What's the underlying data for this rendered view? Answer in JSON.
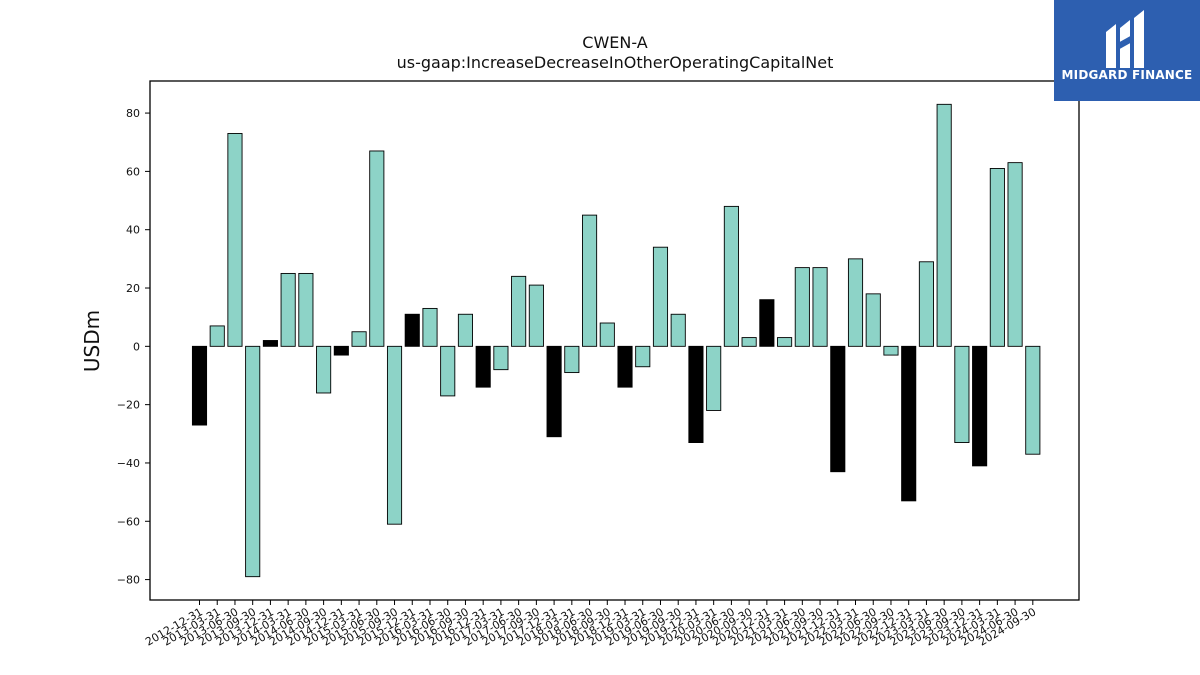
{
  "brand": {
    "name": "MIDGARD FINANCE",
    "background": "#2d5fb0",
    "icon": "midgard-logo-icon"
  },
  "colors": {
    "positive_bar": "#8dd3c7",
    "negative_bar_highlight": "#000000",
    "bar_edge": "#000000"
  },
  "chart_data": {
    "type": "bar",
    "title": "CWEN-A",
    "subtitle": "us-gaap:IncreaseDecreaseInOtherOperatingCapitalNet",
    "xlabel": "",
    "ylabel": "USDm",
    "ylim": [
      -87,
      91
    ],
    "yticks": [
      -80,
      -60,
      -40,
      -20,
      0,
      20,
      40,
      60,
      80
    ],
    "grid": false,
    "categories": [
      "2012-12-31",
      "2013-03-31",
      "2013-06-30",
      "2013-09-30",
      "2013-12-31",
      "2014-03-31",
      "2014-06-30",
      "2014-09-30",
      "2014-12-31",
      "2015-03-31",
      "2015-06-30",
      "2015-09-30",
      "2015-12-31",
      "2016-03-31",
      "2016-06-30",
      "2016-09-30",
      "2016-12-31",
      "2017-03-31",
      "2017-06-30",
      "2017-09-30",
      "2017-12-31",
      "2018-03-31",
      "2018-06-30",
      "2018-09-30",
      "2018-12-31",
      "2019-03-31",
      "2019-06-30",
      "2019-09-30",
      "2019-12-31",
      "2020-03-31",
      "2020-06-30",
      "2020-09-30",
      "2020-12-31",
      "2021-03-31",
      "2021-06-30",
      "2021-09-30",
      "2021-12-31",
      "2022-03-31",
      "2022-06-30",
      "2022-09-30",
      "2022-12-31",
      "2023-03-31",
      "2023-06-30",
      "2023-09-30",
      "2023-12-31",
      "2024-03-31",
      "2024-06-30",
      "2024-09-30"
    ],
    "values": [
      -27,
      7,
      73,
      -79,
      2,
      25,
      25,
      -16,
      -3,
      5,
      67,
      -61,
      11,
      13,
      -17,
      11,
      -14,
      -8,
      24,
      21,
      -31,
      -9,
      45,
      8,
      -14,
      -7,
      34,
      11,
      -33,
      -22,
      48,
      3,
      16,
      3,
      27,
      27,
      -43,
      30,
      18,
      -3,
      -53,
      29,
      83,
      -33,
      -41,
      61,
      63,
      -37
    ],
    "highlighted": [
      0,
      4,
      8,
      12,
      16,
      20,
      24,
      28,
      32,
      36,
      40,
      44
    ]
  }
}
